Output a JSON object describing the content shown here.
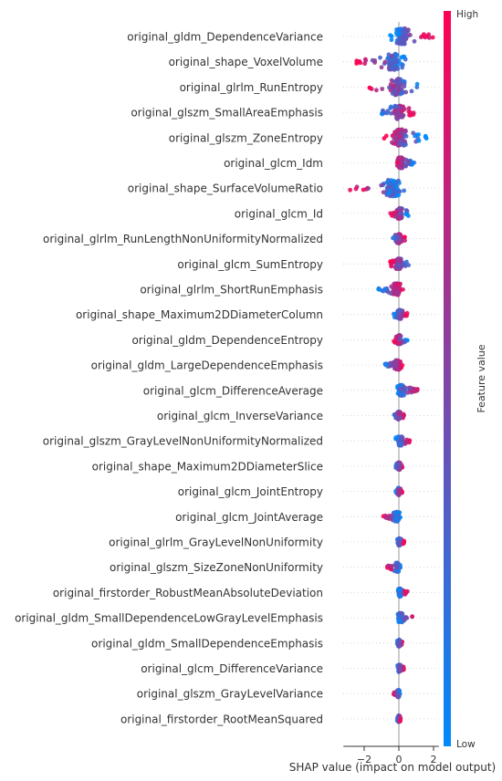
{
  "chart_data": {
    "type": "scatter",
    "subtype": "shap-beeswarm",
    "title": "",
    "xlabel": "SHAP value (impact on model output)",
    "ylabel": "",
    "xlim": [
      -3.2,
      2.3
    ],
    "xticks": [
      -2,
      0,
      2
    ],
    "grid": false,
    "colorbar": {
      "label": "Feature value",
      "high_label": "High",
      "low_label": "Low",
      "colors": [
        "#008afb",
        "#ff0052"
      ],
      "placement": "right"
    },
    "features": [
      {
        "name": "original_gldm_DependenceVariance",
        "min": -0.5,
        "max": 2.0,
        "low_side": "left"
      },
      {
        "name": "original_shape_VoxelVolume",
        "min": -2.5,
        "max": 0.4,
        "low_side": "right"
      },
      {
        "name": "original_glrlm_RunEntropy",
        "min": -1.7,
        "max": 1.2,
        "low_side": "right"
      },
      {
        "name": "original_glszm_SmallAreaEmphasis",
        "min": -1.1,
        "max": 0.9,
        "low_side": "left"
      },
      {
        "name": "original_glszm_ZoneEntropy",
        "min": -1.2,
        "max": 1.6,
        "low_side": "right"
      },
      {
        "name": "original_glcm_Idm",
        "min": -0.4,
        "max": 0.9,
        "low_side": "right"
      },
      {
        "name": "original_shape_SurfaceVolumeRatio",
        "min": -2.9,
        "max": 0.3,
        "low_side": "right"
      },
      {
        "name": "original_glcm_Id",
        "min": -0.5,
        "max": 0.7,
        "low_side": "right"
      },
      {
        "name": "original_glrlm_RunLengthNonUniformityNormalized",
        "min": -0.5,
        "max": 0.4,
        "low_side": "left"
      },
      {
        "name": "original_glcm_SumEntropy",
        "min": -0.6,
        "max": 0.6,
        "low_side": "right"
      },
      {
        "name": "original_glrlm_ShortRunEmphasis",
        "min": -1.2,
        "max": 0.3,
        "low_side": "left"
      },
      {
        "name": "original_shape_Maximum2DDiameterColumn",
        "min": -0.3,
        "max": 0.5,
        "low_side": "left"
      },
      {
        "name": "original_gldm_DependenceEntropy",
        "min": -0.3,
        "max": 0.5,
        "low_side": "right"
      },
      {
        "name": "original_gldm_LargeDependenceEmphasis",
        "min": -0.8,
        "max": 0.2,
        "low_side": "left"
      },
      {
        "name": "original_glcm_DifferenceAverage",
        "min": -0.1,
        "max": 1.1,
        "low_side": "left"
      },
      {
        "name": "original_glcm_InverseVariance",
        "min": -0.3,
        "max": 0.3,
        "low_side": "left"
      },
      {
        "name": "original_glszm_GrayLevelNonUniformityNormalized",
        "min": -0.2,
        "max": 0.7,
        "low_side": "left"
      },
      {
        "name": "original_shape_Maximum2DDiameterSlice",
        "min": -0.2,
        "max": 0.2,
        "low_side": "left"
      },
      {
        "name": "original_glcm_JointEntropy",
        "min": -0.2,
        "max": 0.2,
        "low_side": "left"
      },
      {
        "name": "original_glcm_JointAverage",
        "min": -0.9,
        "max": 0.1,
        "low_side": "right"
      },
      {
        "name": "original_glrlm_GrayLevelNonUniformity",
        "min": -0.1,
        "max": 0.3,
        "low_side": "left"
      },
      {
        "name": "original_glszm_SizeZoneNonUniformity",
        "min": -0.7,
        "max": 0.1,
        "low_side": "right"
      },
      {
        "name": "original_firstorder_RobustMeanAbsoluteDeviation",
        "min": -0.1,
        "max": 0.5,
        "low_side": "left"
      },
      {
        "name": "original_gldm_SmallDependenceLowGrayLevelEmphasis",
        "min": -0.1,
        "max": 0.8,
        "low_side": "left"
      },
      {
        "name": "original_gldm_SmallDependenceEmphasis",
        "min": -0.1,
        "max": 0.2,
        "low_side": "left"
      },
      {
        "name": "original_glcm_DifferenceVariance",
        "min": -0.1,
        "max": 0.3,
        "low_side": "left"
      },
      {
        "name": "original_glszm_GrayLevelVariance",
        "min": -0.3,
        "max": 0.1,
        "low_side": "right"
      },
      {
        "name": "original_firstorder_RootMeanSquared",
        "min": -0.1,
        "max": 0.1,
        "low_side": "left"
      }
    ]
  }
}
